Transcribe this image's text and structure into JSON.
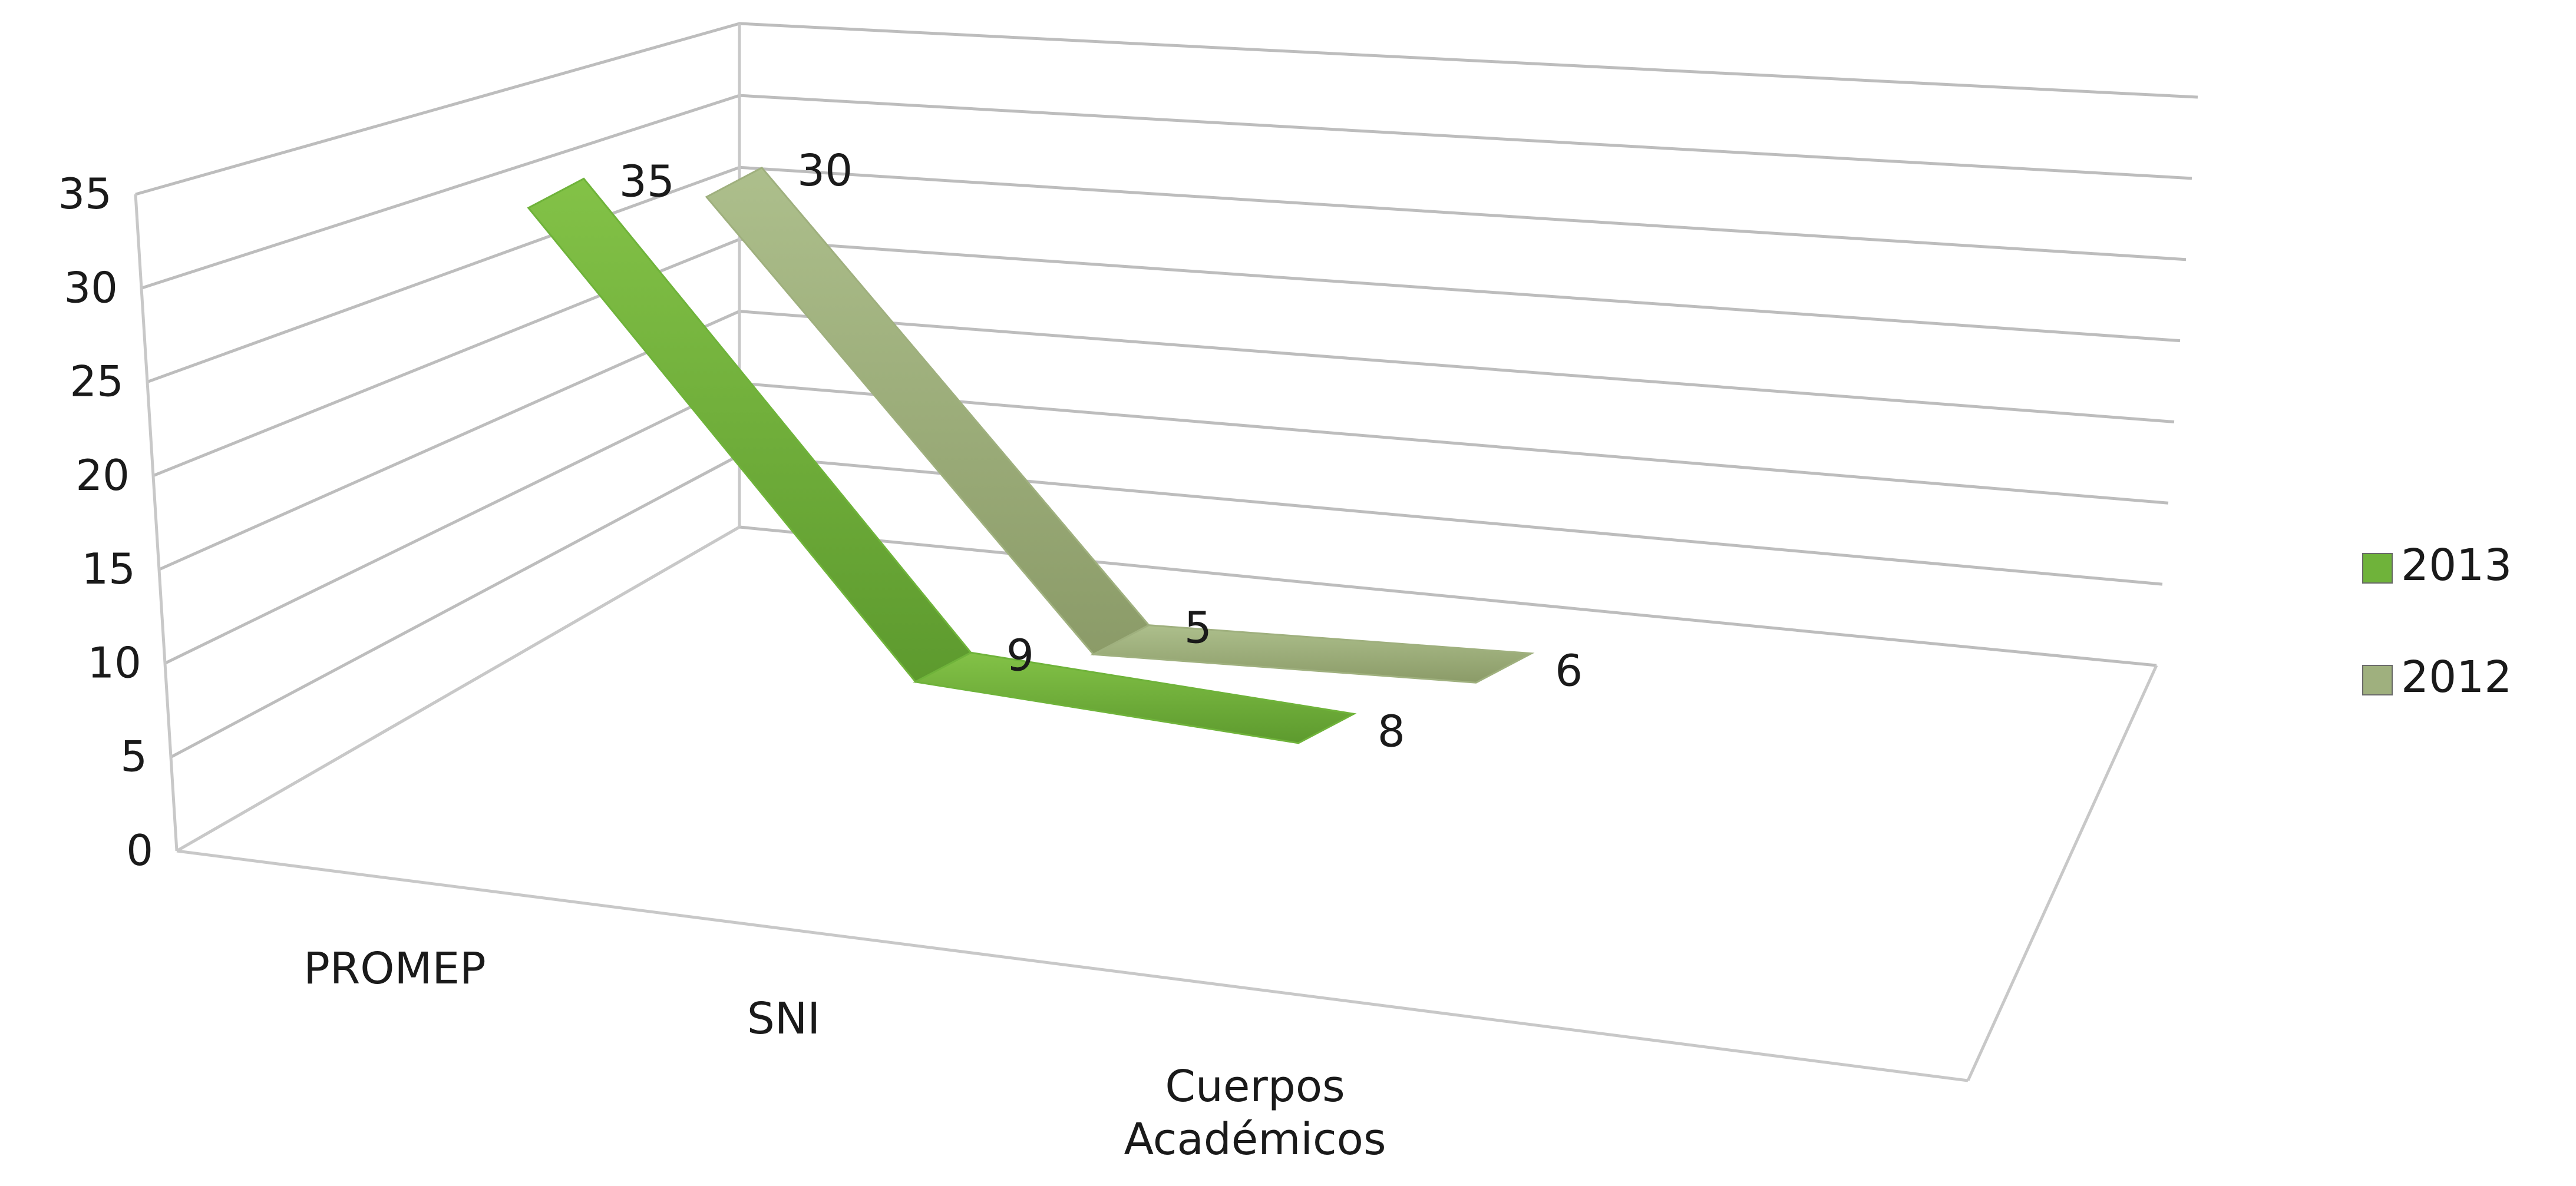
{
  "chart_data": {
    "type": "line",
    "title": "",
    "xlabel": "",
    "ylabel": "",
    "ylim": [
      0,
      35
    ],
    "yticks": [
      "0",
      "5",
      "10",
      "15",
      "20",
      "25",
      "30",
      "35"
    ],
    "categories": [
      "PROMEP",
      "SNI",
      "Cuerpos Académicos"
    ],
    "series": [
      {
        "name": "2013",
        "values": [
          35,
          9,
          8
        ],
        "color": "#6fb33a"
      },
      {
        "name": "2012",
        "values": [
          30,
          5,
          6
        ],
        "color": "#9fb07e"
      }
    ],
    "grid": true,
    "legend": "right",
    "three_d": true
  }
}
